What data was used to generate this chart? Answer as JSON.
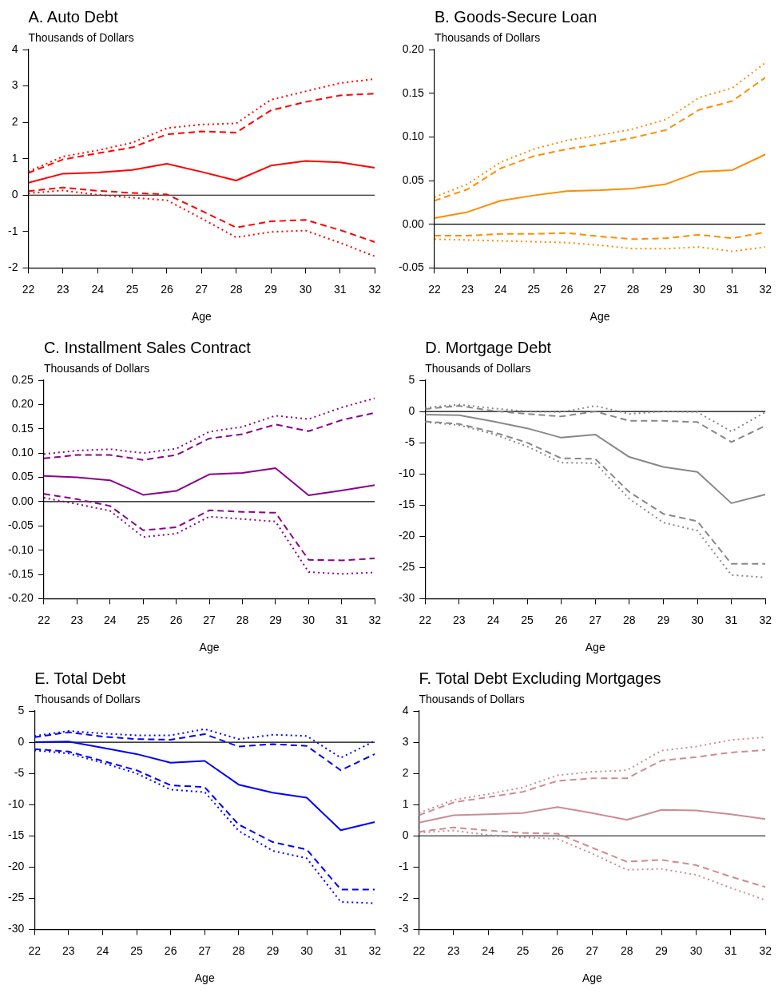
{
  "chart_data": [
    {
      "type": "line",
      "title": "A. Auto Debt",
      "ylabel": "Thousands of Dollars",
      "xlabel": "Age",
      "x": [
        22,
        23,
        24,
        25,
        26,
        27,
        28,
        29,
        30,
        31,
        32
      ],
      "xlim": [
        22,
        32
      ],
      "xticks": [
        22,
        23,
        24,
        25,
        26,
        27,
        28,
        29,
        30,
        31,
        32
      ],
      "ylim": [
        -2,
        4
      ],
      "yticks": [
        -2,
        -1,
        0,
        1,
        2,
        3,
        4
      ],
      "ref_lines": [
        {
          "axis": "y",
          "value": 0,
          "color": "#000000"
        }
      ],
      "marker": "none",
      "series": [
        {
          "color": "#ff0000",
          "line_style": "solid",
          "values": [
            0.34,
            0.59,
            0.62,
            0.69,
            0.86,
            0.64,
            0.4,
            0.81,
            0.94,
            0.9,
            0.75
          ]
        },
        {
          "color": "#ff0000",
          "line_style": "dashed",
          "values": [
            0.61,
            0.98,
            1.15,
            1.31,
            1.67,
            1.75,
            1.72,
            2.33,
            2.56,
            2.74,
            2.79
          ]
        },
        {
          "color": "#ff0000",
          "line_style": "dotted",
          "values": [
            0.65,
            1.06,
            1.23,
            1.44,
            1.84,
            1.94,
            1.97,
            2.62,
            2.85,
            3.08,
            3.19
          ]
        },
        {
          "color": "#ff0000",
          "line_style": "dashed",
          "values": [
            0.11,
            0.21,
            0.12,
            0.06,
            0.02,
            -0.43,
            -0.89,
            -0.72,
            -0.68,
            -0.96,
            -1.29
          ]
        },
        {
          "color": "#ff0000",
          "line_style": "dotted",
          "values": [
            0.05,
            0.13,
            0.01,
            -0.07,
            -0.14,
            -0.64,
            -1.16,
            -1.01,
            -0.97,
            -1.31,
            -1.68
          ]
        }
      ]
    },
    {
      "type": "line",
      "title": "B. Goods-Secure Loan",
      "ylabel": "Thousands of Dollars",
      "xlabel": "Age",
      "x": [
        22,
        23,
        24,
        25,
        26,
        27,
        28,
        29,
        30,
        31,
        32
      ],
      "xlim": [
        22,
        32
      ],
      "xticks": [
        22,
        23,
        24,
        25,
        26,
        27,
        28,
        29,
        30,
        31,
        32
      ],
      "ylim": [
        -0.05,
        0.2
      ],
      "yticks": [
        {
          "value": -0.05,
          "label": "-0.05"
        },
        {
          "value": 0,
          "label": "0.00"
        },
        {
          "value": 0.05,
          "label": "0.05"
        },
        {
          "value": 0.1,
          "label": "0.10"
        },
        {
          "value": 0.15,
          "label": "0.15"
        },
        {
          "value": 0.2,
          "label": "0.20"
        }
      ],
      "ref_lines": [
        {
          "axis": "y",
          "value": 0,
          "color": "#000000"
        }
      ],
      "marker": "none",
      "series": [
        {
          "color": "#ff8c00",
          "line_style": "solid",
          "values": [
            0.007,
            0.014,
            0.027,
            0.033,
            0.038,
            0.039,
            0.041,
            0.046,
            0.06,
            0.062,
            0.08
          ]
        },
        {
          "color": "#ff8c00",
          "line_style": "dashed",
          "values": [
            0.027,
            0.04,
            0.064,
            0.078,
            0.086,
            0.092,
            0.099,
            0.108,
            0.131,
            0.141,
            0.168
          ]
        },
        {
          "color": "#ff8c00",
          "line_style": "dotted",
          "values": [
            0.031,
            0.046,
            0.071,
            0.086,
            0.096,
            0.102,
            0.109,
            0.12,
            0.145,
            0.156,
            0.185
          ]
        },
        {
          "color": "#ff8c00",
          "line_style": "dashed",
          "values": [
            -0.013,
            -0.013,
            -0.011,
            -0.011,
            -0.01,
            -0.014,
            -0.017,
            -0.016,
            -0.012,
            -0.016,
            -0.009
          ]
        },
        {
          "color": "#ff8c00",
          "line_style": "dotted",
          "values": [
            -0.017,
            -0.018,
            -0.019,
            -0.02,
            -0.021,
            -0.024,
            -0.028,
            -0.028,
            -0.026,
            -0.031,
            -0.026
          ]
        }
      ]
    },
    {
      "type": "line",
      "title": "C. Installment Sales Contract",
      "ylabel": "Thousands of Dollars",
      "xlabel": "Age",
      "x": [
        22,
        23,
        24,
        25,
        26,
        27,
        28,
        29,
        30,
        31,
        32
      ],
      "xlim": [
        22,
        32
      ],
      "xticks": [
        22,
        23,
        24,
        25,
        26,
        27,
        28,
        29,
        30,
        31,
        32
      ],
      "ylim": [
        -0.2,
        0.25
      ],
      "yticks": [
        {
          "value": -0.2,
          "label": "-0.20"
        },
        {
          "value": -0.15,
          "label": "-0.15"
        },
        {
          "value": -0.1,
          "label": "-0.10"
        },
        {
          "value": -0.05,
          "label": "-0.05"
        },
        {
          "value": 0,
          "label": "0.00"
        },
        {
          "value": 0.05,
          "label": "0.05"
        },
        {
          "value": 0.1,
          "label": "0.10"
        },
        {
          "value": 0.15,
          "label": "0.15"
        },
        {
          "value": 0.2,
          "label": "0.20"
        },
        {
          "value": 0.25,
          "label": "0.25"
        }
      ],
      "ref_lines": [
        {
          "axis": "y",
          "value": 0,
          "color": "#000000"
        }
      ],
      "marker": "none",
      "series": [
        {
          "color": "#8b008b",
          "line_style": "solid",
          "values": [
            0.053,
            0.05,
            0.044,
            0.014,
            0.022,
            0.056,
            0.059,
            0.069,
            0.013,
            0.023,
            0.034
          ]
        },
        {
          "color": "#8b008b",
          "line_style": "dashed",
          "values": [
            0.089,
            0.096,
            0.096,
            0.086,
            0.096,
            0.13,
            0.139,
            0.159,
            0.145,
            0.168,
            0.183
          ]
        },
        {
          "color": "#8b008b",
          "line_style": "dotted",
          "values": [
            0.098,
            0.105,
            0.108,
            0.1,
            0.109,
            0.144,
            0.154,
            0.177,
            0.17,
            0.194,
            0.213
          ]
        },
        {
          "color": "#8b008b",
          "line_style": "dashed",
          "values": [
            0.016,
            0.005,
            -0.009,
            -0.059,
            -0.053,
            -0.018,
            -0.021,
            -0.023,
            -0.12,
            -0.121,
            -0.117
          ]
        },
        {
          "color": "#8b008b",
          "line_style": "dotted",
          "values": [
            0.008,
            -0.005,
            -0.019,
            -0.073,
            -0.066,
            -0.031,
            -0.036,
            -0.041,
            -0.145,
            -0.149,
            -0.146
          ]
        }
      ]
    },
    {
      "type": "line",
      "title": "D. Mortgage Debt",
      "ylabel": "Thousands of Dollars",
      "xlabel": "Age",
      "x": [
        22,
        23,
        24,
        25,
        26,
        27,
        28,
        29,
        30,
        31,
        32
      ],
      "xlim": [
        22,
        32
      ],
      "xticks": [
        22,
        23,
        24,
        25,
        26,
        27,
        28,
        29,
        30,
        31,
        32
      ],
      "ylim": [
        -30,
        5
      ],
      "yticks": [
        -30,
        -25,
        -20,
        -15,
        -10,
        -5,
        0,
        5
      ],
      "ref_lines": [
        {
          "axis": "y",
          "value": 0,
          "color": "#000000"
        }
      ],
      "marker": "none",
      "series": [
        {
          "color": "#888888",
          "line_style": "solid",
          "values": [
            -0.5,
            -0.6,
            -1.6,
            -2.7,
            -4.2,
            -3.7,
            -7.3,
            -8.9,
            -9.7,
            -14.7,
            -13.3
          ]
        },
        {
          "color": "#888888",
          "line_style": "dashed",
          "values": [
            0.4,
            0.9,
            0.1,
            -0.4,
            -0.8,
            0,
            -1.5,
            -1.5,
            -1.7,
            -4.9,
            -2.3
          ]
        },
        {
          "color": "#888888",
          "line_style": "dotted",
          "values": [
            0.6,
            1.1,
            0.5,
            0,
            -0.1,
            0.9,
            -0.4,
            0,
            -0.1,
            -3.2,
            -0.1
          ]
        },
        {
          "color": "#888888",
          "line_style": "dashed",
          "values": [
            -1.6,
            -2.0,
            -3.3,
            -5.0,
            -7.5,
            -7.6,
            -12.9,
            -16.4,
            -17.6,
            -24.4,
            -24.4
          ]
        },
        {
          "color": "#888888",
          "line_style": "dotted",
          "values": [
            -1.7,
            -2.2,
            -3.6,
            -5.6,
            -8.2,
            -8.3,
            -14.0,
            -17.8,
            -19.1,
            -26.2,
            -26.6
          ]
        }
      ]
    },
    {
      "type": "line",
      "title": "E. Total Debt",
      "ylabel": "Thousands of Dollars",
      "xlabel": "Age",
      "x": [
        22,
        23,
        24,
        25,
        26,
        27,
        28,
        29,
        30,
        31,
        32
      ],
      "xlim": [
        22,
        32
      ],
      "xticks": [
        22,
        23,
        24,
        25,
        26,
        27,
        28,
        29,
        30,
        31,
        32
      ],
      "ylim": [
        -30,
        5
      ],
      "yticks": [
        -30,
        -25,
        -20,
        -15,
        -10,
        -5,
        0,
        5
      ],
      "ref_lines": [
        {
          "axis": "y",
          "value": 0,
          "color": "#000000"
        }
      ],
      "marker": "none",
      "series": [
        {
          "color": "#0000ff",
          "line_style": "solid",
          "values": [
            0,
            0.1,
            -0.9,
            -1.9,
            -3.3,
            -3.0,
            -6.8,
            -8.1,
            -8.9,
            -14.1,
            -12.8
          ]
        },
        {
          "color": "#0000ff",
          "line_style": "dashed",
          "values": [
            0.8,
            1.6,
            0.9,
            0.5,
            0.4,
            1.3,
            -0.7,
            -0.3,
            -0.6,
            -4.5,
            -1.9
          ]
        },
        {
          "color": "#0000ff",
          "line_style": "dotted",
          "values": [
            1.0,
            1.8,
            1.4,
            1.1,
            1.1,
            2.1,
            0.5,
            1.2,
            1.0,
            -2.5,
            0.2
          ]
        },
        {
          "color": "#0000ff",
          "line_style": "dashed",
          "values": [
            -1.1,
            -1.5,
            -3.0,
            -4.5,
            -6.9,
            -7.2,
            -13.2,
            -16.0,
            -17.2,
            -23.6,
            -23.6
          ]
        },
        {
          "color": "#0000ff",
          "line_style": "dotted",
          "values": [
            -1.3,
            -1.8,
            -3.3,
            -5.0,
            -7.6,
            -8.0,
            -14.2,
            -17.4,
            -18.6,
            -25.6,
            -25.8
          ]
        }
      ]
    },
    {
      "type": "line",
      "title": "F. Total Debt Excluding Mortgages",
      "ylabel": "Thousands of Dollars",
      "xlabel": "Age",
      "x": [
        22,
        23,
        24,
        25,
        26,
        27,
        28,
        29,
        30,
        31,
        32
      ],
      "xlim": [
        22,
        32
      ],
      "xticks": [
        22,
        23,
        24,
        25,
        26,
        27,
        28,
        29,
        30,
        31,
        32
      ],
      "ylim": [
        -3,
        4
      ],
      "yticks": [
        -3,
        -2,
        -1,
        0,
        1,
        2,
        3,
        4
      ],
      "ref_lines": [
        {
          "axis": "y",
          "value": 0,
          "color": "#000000"
        }
      ],
      "marker": "none",
      "series": [
        {
          "color": "#cd8c95",
          "line_style": "solid",
          "values": [
            0.42,
            0.66,
            0.69,
            0.73,
            0.92,
            0.73,
            0.51,
            0.83,
            0.81,
            0.69,
            0.54
          ]
        },
        {
          "color": "#cd8c95",
          "line_style": "dashed",
          "values": [
            0.66,
            1.07,
            1.24,
            1.41,
            1.76,
            1.84,
            1.84,
            2.41,
            2.52,
            2.67,
            2.75
          ]
        },
        {
          "color": "#cd8c95",
          "line_style": "dotted",
          "values": [
            0.73,
            1.15,
            1.34,
            1.55,
            1.94,
            2.05,
            2.1,
            2.73,
            2.86,
            3.07,
            3.16
          ]
        },
        {
          "color": "#cd8c95",
          "line_style": "dashed",
          "values": [
            0.13,
            0.27,
            0.17,
            0.09,
            0.07,
            -0.38,
            -0.83,
            -0.77,
            -0.94,
            -1.31,
            -1.64
          ]
        },
        {
          "color": "#cd8c95",
          "line_style": "dotted",
          "values": [
            0.1,
            0.17,
            0.03,
            -0.05,
            -0.1,
            -0.57,
            -1.09,
            -1.06,
            -1.25,
            -1.67,
            -2.06
          ]
        }
      ]
    }
  ]
}
